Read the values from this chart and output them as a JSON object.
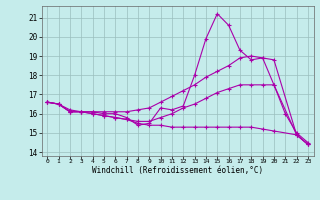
{
  "xlabel": "Windchill (Refroidissement éolien,°C)",
  "bg_color": "#c5eceb",
  "grid_color": "#9bbfbe",
  "line_color": "#aa00aa",
  "xlim": [
    -0.5,
    23.5
  ],
  "ylim": [
    13.8,
    21.6
  ],
  "xticks": [
    0,
    1,
    2,
    3,
    4,
    5,
    6,
    7,
    8,
    9,
    10,
    11,
    12,
    13,
    14,
    15,
    16,
    17,
    18,
    19,
    20,
    21,
    22,
    23
  ],
  "yticks": [
    14,
    15,
    16,
    17,
    18,
    19,
    20,
    21
  ],
  "lines": [
    {
      "x": [
        0,
        1,
        2,
        3,
        4,
        5,
        6,
        7,
        8,
        9,
        10,
        11,
        12,
        13,
        14,
        15,
        16,
        17,
        18,
        19,
        20,
        21,
        22,
        23
      ],
      "y": [
        16.6,
        16.5,
        16.1,
        16.1,
        16.1,
        16.0,
        16.0,
        15.8,
        15.4,
        15.5,
        16.3,
        16.2,
        16.4,
        18.0,
        19.9,
        21.2,
        20.6,
        19.3,
        18.8,
        18.9,
        17.5,
        16.0,
        15.0,
        14.5
      ]
    },
    {
      "x": [
        0,
        1,
        2,
        3,
        4,
        5,
        6,
        7,
        8,
        9,
        10,
        11,
        12,
        13,
        14,
        15,
        16,
        17,
        18,
        19,
        20,
        22,
        23
      ],
      "y": [
        16.6,
        16.5,
        16.2,
        16.1,
        16.1,
        16.1,
        16.1,
        16.1,
        16.2,
        16.3,
        16.6,
        16.9,
        17.2,
        17.5,
        17.9,
        18.2,
        18.5,
        18.9,
        19.0,
        18.9,
        18.8,
        14.9,
        14.4
      ]
    },
    {
      "x": [
        0,
        1,
        2,
        3,
        4,
        5,
        6,
        7,
        8,
        9,
        10,
        11,
        12,
        13,
        14,
        15,
        16,
        17,
        18,
        19,
        20,
        22,
        23
      ],
      "y": [
        16.6,
        16.5,
        16.1,
        16.1,
        16.0,
        15.9,
        15.8,
        15.7,
        15.6,
        15.6,
        15.8,
        16.0,
        16.3,
        16.5,
        16.8,
        17.1,
        17.3,
        17.5,
        17.5,
        17.5,
        17.5,
        14.9,
        14.4
      ]
    },
    {
      "x": [
        0,
        1,
        2,
        3,
        4,
        5,
        6,
        7,
        8,
        9,
        10,
        11,
        12,
        13,
        14,
        15,
        16,
        17,
        18,
        19,
        20,
        22,
        23
      ],
      "y": [
        16.6,
        16.5,
        16.1,
        16.1,
        16.0,
        15.9,
        15.8,
        15.7,
        15.5,
        15.4,
        15.4,
        15.3,
        15.3,
        15.3,
        15.3,
        15.3,
        15.3,
        15.3,
        15.3,
        15.2,
        15.1,
        14.9,
        14.4
      ]
    }
  ]
}
